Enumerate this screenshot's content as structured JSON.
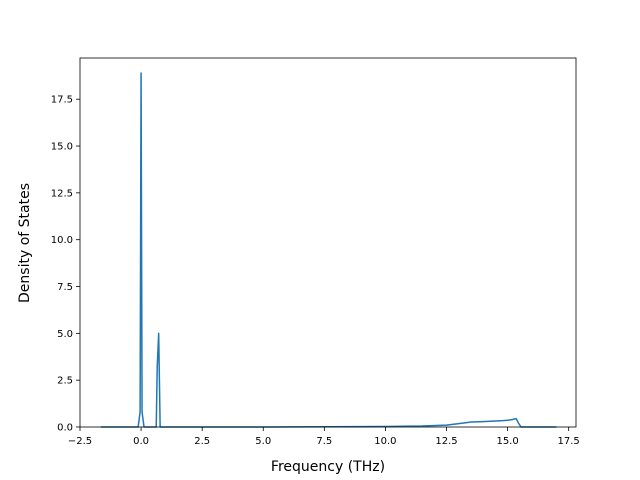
{
  "chart_data": {
    "type": "line",
    "title": "",
    "xlabel": "Frequency (THz)",
    "ylabel": "Density of States",
    "xlim": [
      -2.5,
      17.8
    ],
    "ylim": [
      0,
      19.7
    ],
    "grid": false,
    "line_color": "#1f77b4",
    "x_ticks": [
      -2.5,
      0.0,
      2.5,
      5.0,
      7.5,
      10.0,
      12.5,
      15.0,
      17.5
    ],
    "x_tick_labels": [
      "−2.5",
      "0.0",
      "2.5",
      "5.0",
      "7.5",
      "10.0",
      "12.5",
      "15.0",
      "17.5"
    ],
    "y_ticks": [
      0.0,
      2.5,
      5.0,
      7.5,
      10.0,
      12.5,
      15.0,
      17.5
    ],
    "y_tick_labels": [
      "0.0",
      "2.5",
      "5.0",
      "7.5",
      "10.0",
      "12.5",
      "15.0",
      "17.5"
    ],
    "series": [
      {
        "x": [
          -1.65,
          -0.12,
          -0.04,
          0.0,
          0.04,
          0.12,
          0.62,
          0.66,
          0.72,
          0.78,
          1.0,
          5.0,
          7.5,
          10.0,
          11.5,
          12.5,
          13.0,
          13.4,
          13.5,
          14.0,
          14.5,
          14.8,
          15.0,
          15.2,
          15.35,
          15.45,
          15.55,
          17.0
        ],
        "y": [
          0,
          0,
          0.8,
          18.9,
          0.8,
          0,
          0,
          3.2,
          5.0,
          0,
          0,
          0,
          0.01,
          0.03,
          0.05,
          0.1,
          0.18,
          0.25,
          0.27,
          0.29,
          0.32,
          0.34,
          0.36,
          0.4,
          0.45,
          0.2,
          0,
          0
        ]
      }
    ]
  }
}
